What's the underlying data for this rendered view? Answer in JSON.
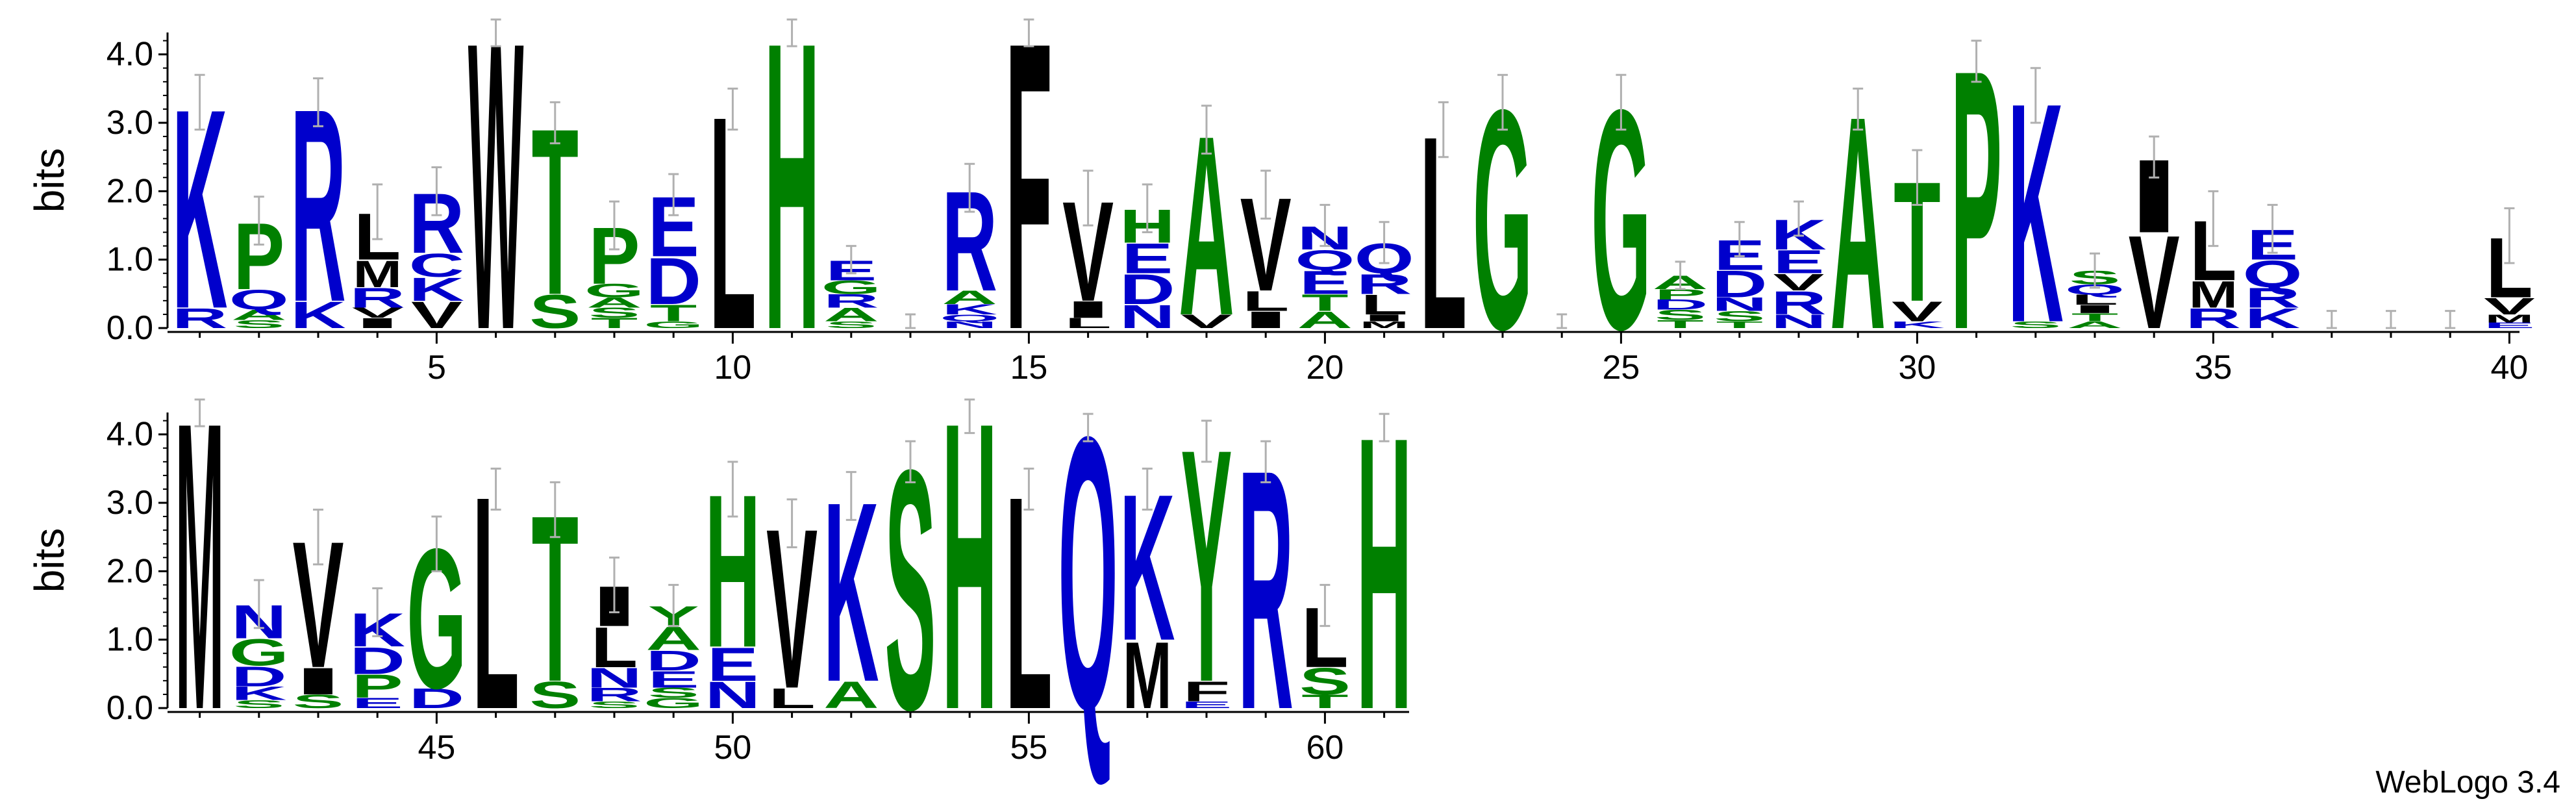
{
  "chart_data": {
    "type": "sequence-logo",
    "ylabel": "bits",
    "ylim": [
      0,
      4.32
    ],
    "yticks": [
      "0.0",
      "1.0",
      "2.0",
      "3.0",
      "4.0"
    ],
    "colors": {
      "hydrophobic": "#000000",
      "polar": "#008000",
      "basic": "#0000cc",
      "neutral": "#0000cc",
      "acidic": "#0000cc"
    },
    "rows": [
      {
        "start": 1,
        "end": 40,
        "xticks": [
          "5",
          "10",
          "15",
          "20",
          "25",
          "30",
          "35",
          "40"
        ]
      },
      {
        "start": 41,
        "end": 61,
        "xticks": [
          "45",
          "50",
          "55",
          "60"
        ]
      }
    ],
    "positions": [
      {
        "pos": 1,
        "stack": [
          [
            "R",
            0.3
          ],
          [
            "K",
            3.0
          ]
        ],
        "err": 0.4
      },
      {
        "pos": 2,
        "stack": [
          [
            "S",
            0.12
          ],
          [
            "A",
            0.15
          ],
          [
            "Q",
            0.3
          ],
          [
            "P",
            1.0
          ]
        ],
        "err": 0.35
      },
      {
        "pos": 3,
        "stack": [
          [
            "K",
            0.4
          ],
          [
            "R",
            2.9
          ]
        ],
        "err": 0.35
      },
      {
        "pos": 4,
        "stack": [
          [
            "I",
            0.15
          ],
          [
            "V",
            0.15
          ],
          [
            "R",
            0.3
          ],
          [
            "M",
            0.4
          ],
          [
            "L",
            0.7
          ]
        ],
        "err": 0.4
      },
      {
        "pos": 5,
        "stack": [
          [
            "V",
            0.4
          ],
          [
            "K",
            0.35
          ],
          [
            "C",
            0.35
          ],
          [
            "R",
            0.9
          ]
        ],
        "err": 0.35
      },
      {
        "pos": 6,
        "stack": [
          [
            "W",
            4.32
          ]
        ],
        "err": 0.2
      },
      {
        "pos": 7,
        "stack": [
          [
            "S",
            0.5
          ],
          [
            "T",
            2.5
          ]
        ],
        "err": 0.3
      },
      {
        "pos": 8,
        "stack": [
          [
            "T",
            0.15
          ],
          [
            "S",
            0.15
          ],
          [
            "A",
            0.15
          ],
          [
            "G",
            0.2
          ],
          [
            "P",
            0.85
          ]
        ],
        "err": 0.35
      },
      {
        "pos": 9,
        "stack": [
          [
            "G",
            0.1
          ],
          [
            "T",
            0.25
          ],
          [
            "D",
            0.7
          ],
          [
            "E",
            0.9
          ]
        ],
        "err": 0.3
      },
      {
        "pos": 10,
        "stack": [
          [
            "L",
            3.2
          ]
        ],
        "err": 0.3
      },
      {
        "pos": 11,
        "stack": [
          [
            "H",
            4.32
          ]
        ],
        "err": 0.2
      },
      {
        "pos": 12,
        "stack": [
          [
            "S",
            0.1
          ],
          [
            "A",
            0.2
          ],
          [
            "R",
            0.2
          ],
          [
            "G",
            0.2
          ],
          [
            "E",
            0.3
          ]
        ],
        "err": 0.2
      },
      {
        "pos": 13,
        "stack": [],
        "err": 0.2
      },
      {
        "pos": 14,
        "stack": [
          [
            "N",
            0.1
          ],
          [
            "Q",
            0.1
          ],
          [
            "K",
            0.15
          ],
          [
            "A",
            0.2
          ],
          [
            "R",
            1.5
          ]
        ],
        "err": 0.35
      },
      {
        "pos": 15,
        "stack": [
          [
            "F",
            4.32
          ]
        ],
        "err": 0.2
      },
      {
        "pos": 16,
        "stack": [
          [
            "L",
            0.15
          ],
          [
            "I",
            0.25
          ],
          [
            "V",
            1.5
          ]
        ],
        "err": 0.4
      },
      {
        "pos": 17,
        "stack": [
          [
            "N",
            0.35
          ],
          [
            "D",
            0.45
          ],
          [
            "E",
            0.45
          ],
          [
            "H",
            0.5
          ]
        ],
        "err": 0.35
      },
      {
        "pos": 18,
        "stack": [
          [
            "V",
            0.2
          ],
          [
            "A",
            2.7
          ]
        ],
        "err": 0.35
      },
      {
        "pos": 19,
        "stack": [
          [
            "I",
            0.25
          ],
          [
            "L",
            0.3
          ],
          [
            "V",
            1.4
          ]
        ],
        "err": 0.35
      },
      {
        "pos": 20,
        "stack": [
          [
            "A",
            0.25
          ],
          [
            "T",
            0.25
          ],
          [
            "E",
            0.35
          ],
          [
            "Q",
            0.3
          ],
          [
            "N",
            0.35
          ]
        ],
        "err": 0.3
      },
      {
        "pos": 21,
        "stack": [
          [
            "M",
            0.1
          ],
          [
            "I",
            0.1
          ],
          [
            "L",
            0.3
          ],
          [
            "R",
            0.3
          ],
          [
            "Q",
            0.45
          ]
        ],
        "err": 0.3
      },
      {
        "pos": 22,
        "stack": [
          [
            "L",
            2.9
          ]
        ],
        "err": 0.4
      },
      {
        "pos": 23,
        "stack": [
          [
            "G",
            3.3
          ]
        ],
        "err": 0.4
      },
      {
        "pos": 24,
        "stack": [],
        "err": 0.2
      },
      {
        "pos": 25,
        "stack": [
          [
            "G",
            3.3
          ]
        ],
        "err": 0.4
      },
      {
        "pos": 26,
        "stack": [
          [
            "T",
            0.12
          ],
          [
            "S",
            0.15
          ],
          [
            "D",
            0.15
          ],
          [
            "P",
            0.15
          ],
          [
            "A",
            0.2
          ]
        ],
        "err": 0.2
      },
      {
        "pos": 27,
        "stack": [
          [
            "T",
            0.1
          ],
          [
            "S",
            0.15
          ],
          [
            "N",
            0.2
          ],
          [
            "D",
            0.4
          ],
          [
            "E",
            0.45
          ]
        ],
        "err": 0.25
      },
      {
        "pos": 28,
        "stack": [
          [
            "N",
            0.2
          ],
          [
            "R",
            0.35
          ],
          [
            "V",
            0.25
          ],
          [
            "E",
            0.35
          ],
          [
            "K",
            0.45
          ]
        ],
        "err": 0.25
      },
      {
        "pos": 29,
        "stack": [
          [
            "A",
            3.2
          ]
        ],
        "err": 0.3
      },
      {
        "pos": 30,
        "stack": [
          [
            "K",
            0.1
          ],
          [
            "V",
            0.3
          ],
          [
            "T",
            1.8
          ]
        ],
        "err": 0.4
      },
      {
        "pos": 31,
        "stack": [
          [
            "P",
            3.9
          ]
        ],
        "err": 0.3
      },
      {
        "pos": 32,
        "stack": [
          [
            "S",
            0.1
          ],
          [
            "K",
            3.3
          ]
        ],
        "err": 0.4
      },
      {
        "pos": 33,
        "stack": [
          [
            "A",
            0.1
          ],
          [
            "T",
            0.12
          ],
          [
            "I",
            0.12
          ],
          [
            "L",
            0.15
          ],
          [
            "Q",
            0.15
          ],
          [
            "S",
            0.2
          ]
        ],
        "err": 0.25
      },
      {
        "pos": 34,
        "stack": [
          [
            "V",
            1.4
          ],
          [
            "I",
            1.1
          ]
        ],
        "err": 0.3
      },
      {
        "pos": 35,
        "stack": [
          [
            "R",
            0.3
          ],
          [
            "M",
            0.4
          ],
          [
            "L",
            0.9
          ]
        ],
        "err": 0.4
      },
      {
        "pos": 36,
        "stack": [
          [
            "K",
            0.3
          ],
          [
            "R",
            0.3
          ],
          [
            "Q",
            0.4
          ],
          [
            "E",
            0.45
          ]
        ],
        "err": 0.35
      },
      {
        "pos": 37,
        "stack": [],
        "err": 0.25
      },
      {
        "pos": 38,
        "stack": [],
        "err": 0.25
      },
      {
        "pos": 39,
        "stack": [],
        "err": 0.25
      },
      {
        "pos": 40,
        "stack": [
          [
            "E",
            0.08
          ],
          [
            "M",
            0.12
          ],
          [
            "V",
            0.25
          ],
          [
            "L",
            0.9
          ]
        ],
        "err": 0.4
      },
      {
        "pos": 41,
        "stack": [
          [
            "M",
            4.32
          ]
        ],
        "err": 0.2
      },
      {
        "pos": 42,
        "stack": [
          [
            "S",
            0.12
          ],
          [
            "K",
            0.2
          ],
          [
            "D",
            0.3
          ],
          [
            "G",
            0.4
          ],
          [
            "N",
            0.5
          ]
        ],
        "err": 0.35
      },
      {
        "pos": 43,
        "stack": [
          [
            "S",
            0.2
          ],
          [
            "I",
            0.4
          ],
          [
            "V",
            1.9
          ]
        ],
        "err": 0.4
      },
      {
        "pos": 44,
        "stack": [
          [
            "E",
            0.15
          ],
          [
            "P",
            0.35
          ],
          [
            "D",
            0.4
          ],
          [
            "K",
            0.5
          ]
        ],
        "err": 0.35
      },
      {
        "pos": 45,
        "stack": [
          [
            "D",
            0.3
          ],
          [
            "G",
            2.1
          ]
        ],
        "err": 0.4
      },
      {
        "pos": 46,
        "stack": [
          [
            "L",
            3.2
          ]
        ],
        "err": 0.3
      },
      {
        "pos": 47,
        "stack": [
          [
            "S",
            0.4
          ],
          [
            "T",
            2.5
          ]
        ],
        "err": 0.4
      },
      {
        "pos": 48,
        "stack": [
          [
            "S",
            0.1
          ],
          [
            "R",
            0.2
          ],
          [
            "N",
            0.3
          ],
          [
            "L",
            0.6
          ],
          [
            "I",
            0.6
          ]
        ],
        "err": 0.4
      },
      {
        "pos": 49,
        "stack": [
          [
            "G",
            0.15
          ],
          [
            "S",
            0.15
          ],
          [
            "E",
            0.25
          ],
          [
            "D",
            0.3
          ],
          [
            "A",
            0.35
          ],
          [
            "Y",
            0.3
          ]
        ],
        "err": 0.3
      },
      {
        "pos": 50,
        "stack": [
          [
            "N",
            0.4
          ],
          [
            "E",
            0.5
          ],
          [
            "H",
            2.3
          ]
        ],
        "err": 0.4
      },
      {
        "pos": 51,
        "stack": [
          [
            "L",
            0.3
          ],
          [
            "V",
            2.4
          ]
        ],
        "err": 0.35
      },
      {
        "pos": 52,
        "stack": [
          [
            "A",
            0.4
          ],
          [
            "K",
            2.7
          ]
        ],
        "err": 0.35
      },
      {
        "pos": 53,
        "stack": [
          [
            "S",
            3.6
          ]
        ],
        "err": 0.3
      },
      {
        "pos": 54,
        "stack": [
          [
            "H",
            4.32
          ]
        ],
        "err": 0.3
      },
      {
        "pos": 55,
        "stack": [
          [
            "L",
            3.2
          ]
        ],
        "err": 0.3
      },
      {
        "pos": 56,
        "stack": [
          [
            "Q",
            4.1
          ]
        ],
        "err": 0.2
      },
      {
        "pos": 57,
        "stack": [
          [
            "M",
            1.0
          ],
          [
            "K",
            2.2
          ]
        ],
        "err": 0.3
      },
      {
        "pos": 58,
        "stack": [
          [
            "E",
            0.1
          ],
          [
            "F",
            0.3
          ],
          [
            "Y",
            3.5
          ]
        ],
        "err": 0.3
      },
      {
        "pos": 59,
        "stack": [
          [
            "R",
            3.6
          ]
        ],
        "err": 0.3
      },
      {
        "pos": 60,
        "stack": [
          [
            "T",
            0.2
          ],
          [
            "S",
            0.4
          ],
          [
            "L",
            0.9
          ]
        ],
        "err": 0.3
      },
      {
        "pos": 61,
        "stack": [
          [
            "H",
            4.1
          ]
        ],
        "err": 0.2
      }
    ]
  },
  "credit": "WebLogo 3.4"
}
